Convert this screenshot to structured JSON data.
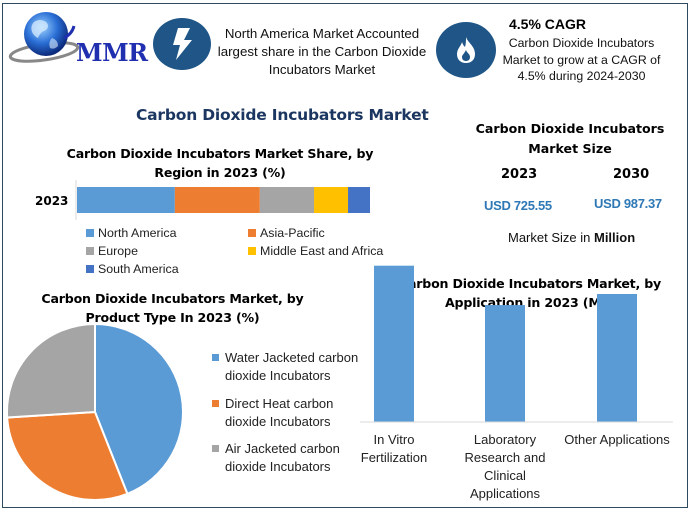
{
  "brand": {
    "logo_text": "MMR",
    "logo_icon": "globe-icon"
  },
  "callouts": [
    {
      "icon": "lightning-icon",
      "text": [
        "North America Market Accounted",
        "largest share in the Carbon Dioxide",
        "Incubators Market"
      ]
    },
    {
      "icon": "flame-icon",
      "heading": "4.5% CAGR",
      "text": [
        "Carbon Dioxide Incubators",
        "Market to grow at a CAGR of",
        "4.5% during 2024-2030"
      ]
    }
  ],
  "main_title": "Carbon Dioxide Incubators Market",
  "market_size": {
    "title": [
      "Carbon Dioxide Incubators",
      "Market Size"
    ],
    "years": [
      "2023",
      "2030"
    ],
    "values": [
      "USD 725.55",
      "USD 987.37"
    ],
    "note_prefix": "Market Size in ",
    "note_unit": "Million"
  },
  "colors": {
    "blue": "#5b9bd5",
    "orange": "#ed7d31",
    "gray": "#a5a5a5",
    "yellow": "#ffc000",
    "dark_blue": "#4472c4",
    "icon_circle": "#1f5687",
    "title_navy": "#1b3660",
    "value_blue": "#2e78b5"
  },
  "chart_data": [
    {
      "type": "bar",
      "stacked": true,
      "orientation": "horizontal",
      "title": [
        "Carbon Dioxide Incubators Market Share, by",
        "Region in 2023 (%)"
      ],
      "categories": [
        "2023"
      ],
      "series": [
        {
          "name": "North America",
          "values": [
            33.4
          ],
          "color": "#5b9bd5"
        },
        {
          "name": "Asia-Pacific",
          "values": [
            29.0
          ],
          "color": "#ed7d31"
        },
        {
          "name": "Europe",
          "values": [
            18.5
          ],
          "color": "#a5a5a5"
        },
        {
          "name": "Middle East and Africa",
          "values": [
            11.6
          ],
          "color": "#ffc000"
        },
        {
          "name": "South America",
          "values": [
            7.5
          ],
          "color": "#4472c4"
        }
      ],
      "xlim": [
        0,
        100
      ],
      "legend": "bottom",
      "grid": false
    },
    {
      "type": "pie",
      "title": [
        "Carbon Dioxide Incubators Market, by",
        "Product Type In 2023 (%)"
      ],
      "labels": [
        [
          "Water Jacketed carbon",
          "dioxide Incubators"
        ],
        [
          "Direct Heat carbon",
          "dioxide Incubators"
        ],
        [
          "Air Jacketed carbon",
          "dioxide Incubators"
        ]
      ],
      "values": [
        44,
        30,
        26
      ],
      "colors": [
        "#5b9bd5",
        "#ed7d31",
        "#a5a5a5"
      ],
      "legend": "right"
    },
    {
      "type": "bar",
      "title": [
        "Carbon Dioxide Incubators Market, by",
        "Application in 2023 (Mn)"
      ],
      "categories": [
        [
          "In Vitro",
          "Fertilization"
        ],
        [
          "Laboratory",
          "Research and",
          "Clinical",
          "Applications"
        ],
        [
          "Other Applications"
        ]
      ],
      "values": [
        127,
        95,
        104
      ],
      "ylim": [
        0,
        130
      ],
      "color": "#5b9bd5",
      "xlabel": "",
      "ylabel": "",
      "grid": false
    }
  ]
}
